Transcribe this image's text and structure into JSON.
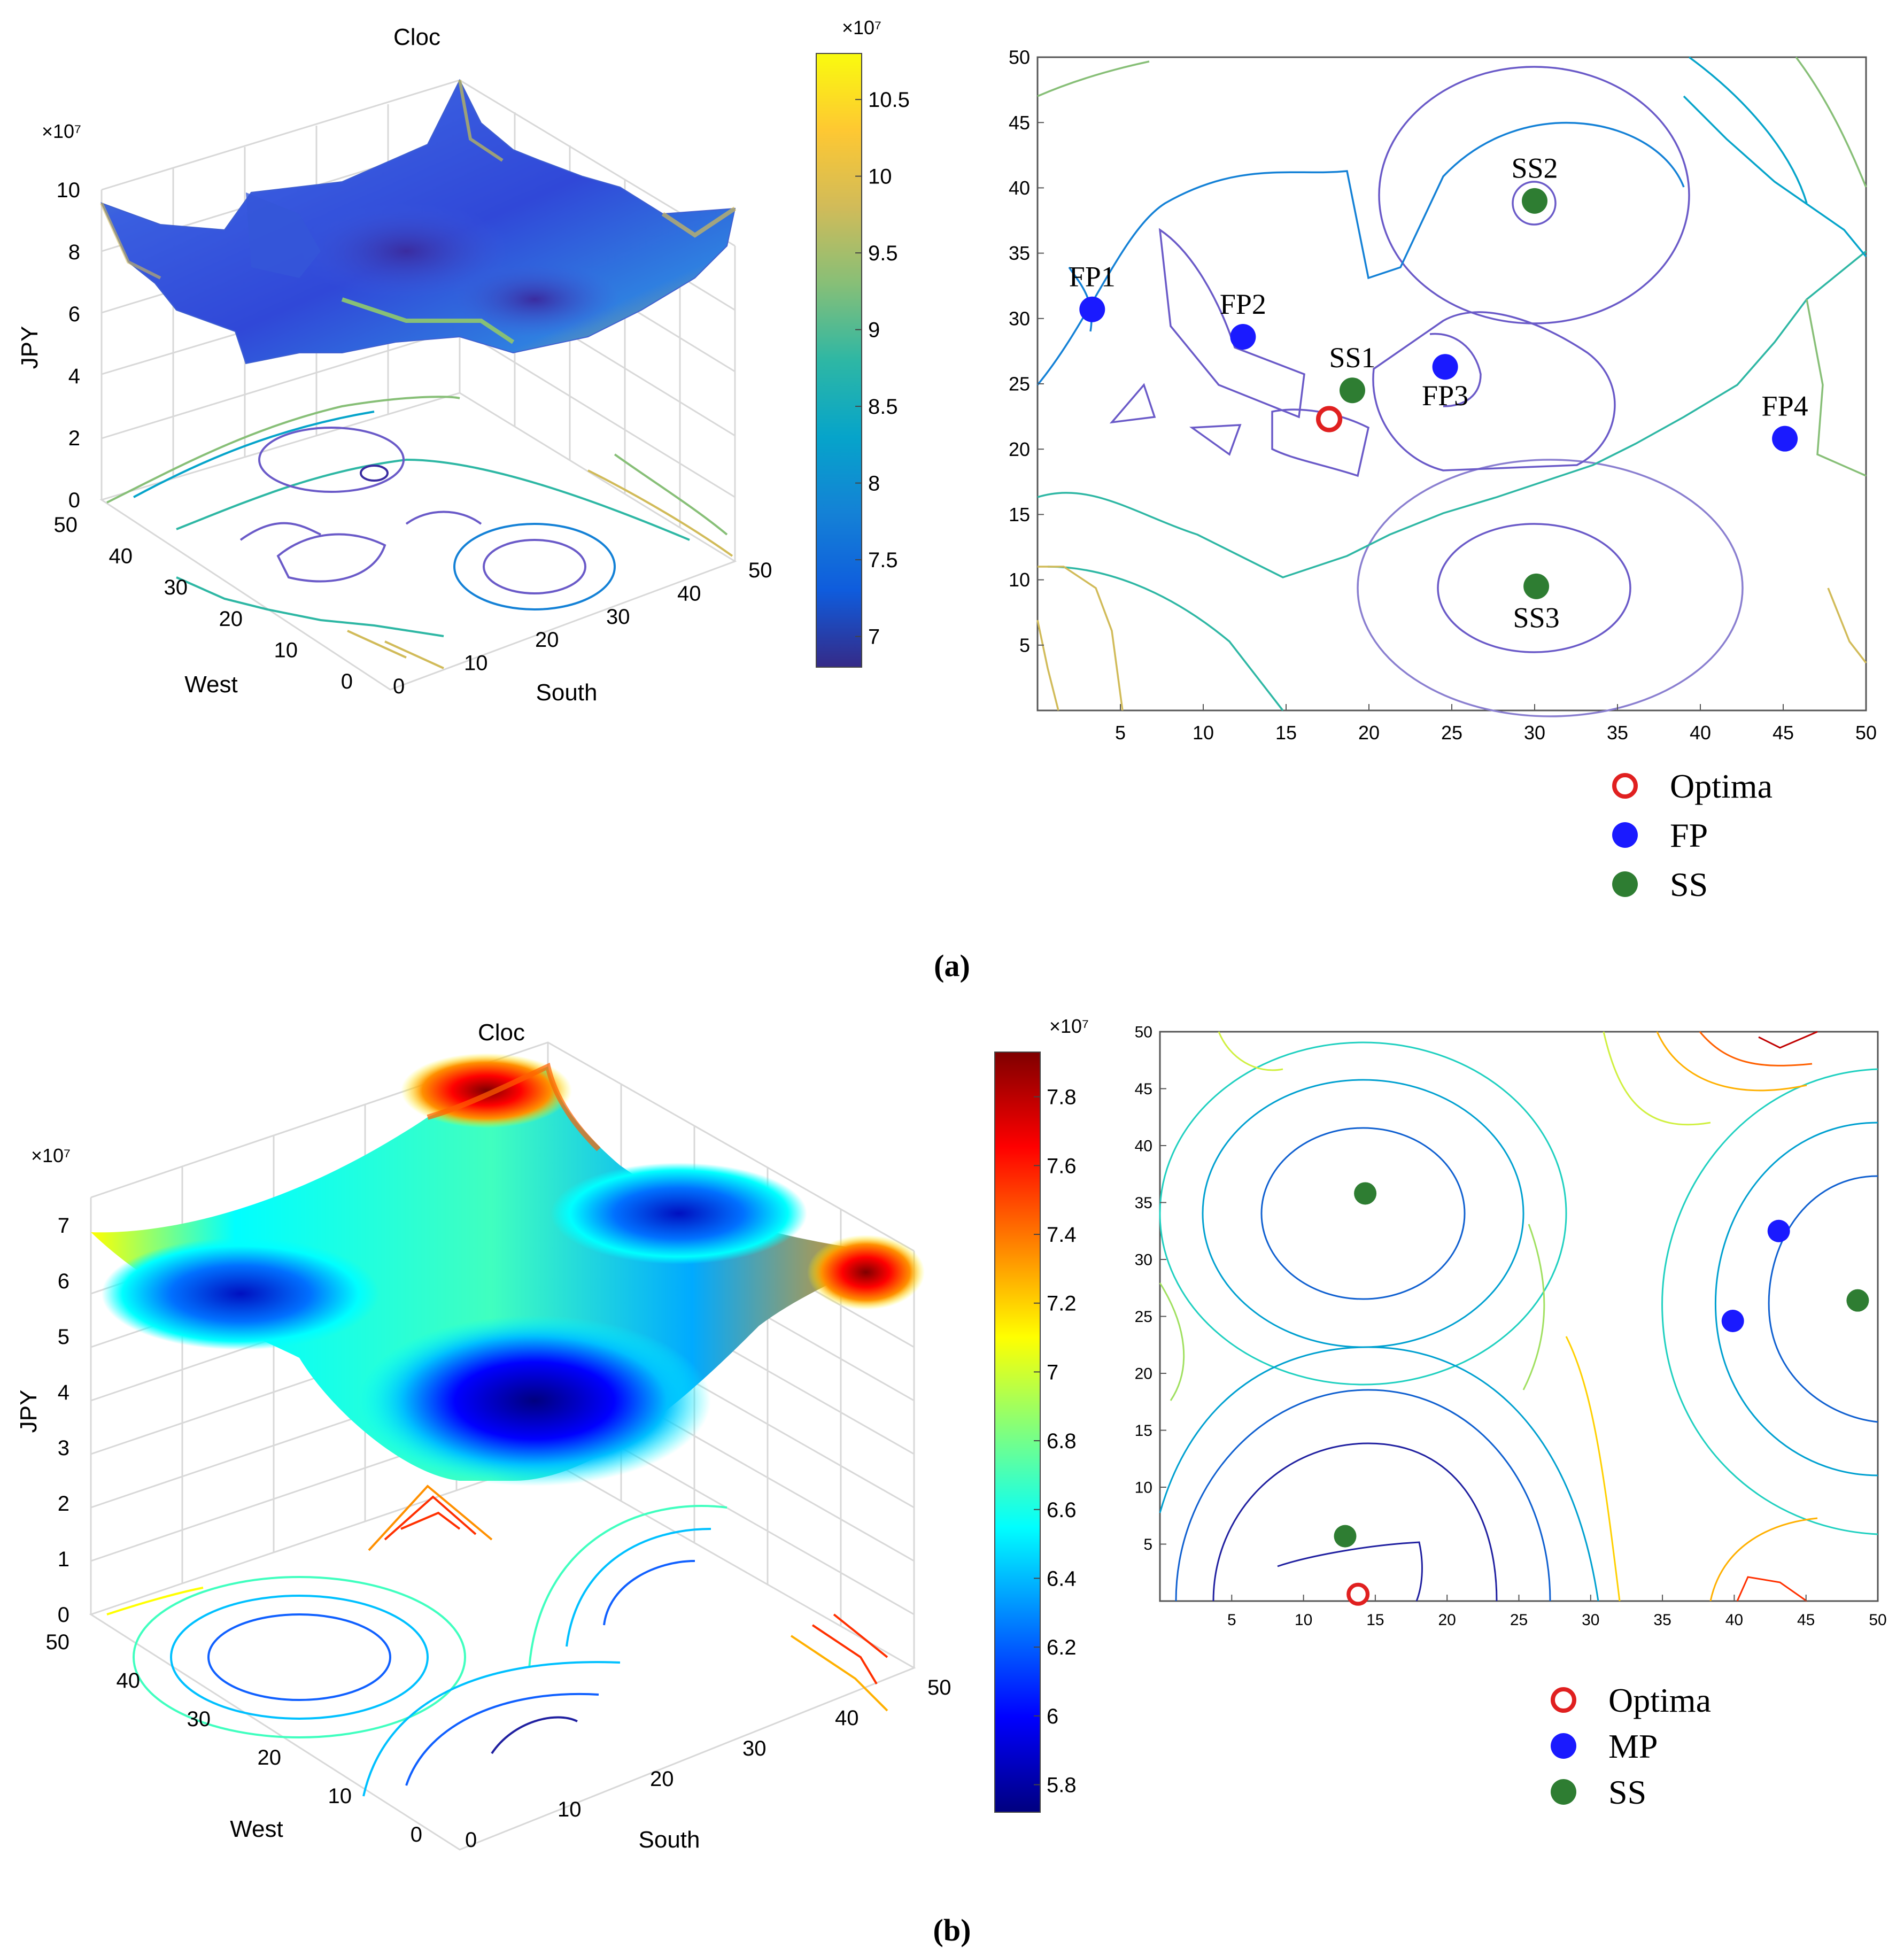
{
  "figure": {
    "panel_a_label": "(a)",
    "panel_b_label": "(b)"
  },
  "colors": {
    "optima": "#e02020",
    "facility_point": "#1a1aff",
    "supply_station": "#2e7d32",
    "parula_scale": [
      "#352a87",
      "#0f5cdd",
      "#1481d6",
      "#06a4ca",
      "#2eb7a4",
      "#87bf77",
      "#d1bb59",
      "#fec832",
      "#f9fb0e"
    ],
    "jet_scale": [
      "#00007f",
      "#0000ff",
      "#007fff",
      "#00ffff",
      "#7fff7f",
      "#ffff00",
      "#ff7f00",
      "#ff0000",
      "#7f0000"
    ]
  },
  "chart_data": [
    {
      "id": "a-surface",
      "type": "surface3d",
      "title": "Cloc",
      "zlabel": "JPY",
      "xlabel": "West",
      "ylabel": "South",
      "z_exponent": "×10⁷",
      "z_ticks": [
        "0",
        "2",
        "4",
        "6",
        "8",
        "10"
      ],
      "x_ticks": [
        "0",
        "10",
        "20",
        "30",
        "40",
        "50"
      ],
      "y_ticks": [
        "0",
        "10",
        "20",
        "30",
        "40",
        "50"
      ],
      "zlim": [
        0,
        10
      ],
      "colormap": "parula",
      "colorbar": {
        "exponent": "×10⁷",
        "ticks": [
          "10.5",
          "10",
          "9.5",
          "9",
          "8.5",
          "8",
          "7.5",
          "7"
        ],
        "range": [
          6.8,
          10.8
        ]
      }
    },
    {
      "id": "a-contour",
      "type": "scatter",
      "xlim": [
        0,
        50
      ],
      "ylim": [
        0,
        50
      ],
      "x_ticks": [
        "5",
        "10",
        "15",
        "20",
        "25",
        "30",
        "35",
        "40",
        "45",
        "50"
      ],
      "y_ticks": [
        "5",
        "10",
        "15",
        "20",
        "25",
        "30",
        "35",
        "40",
        "45",
        "50"
      ],
      "points": [
        {
          "label": "FP1",
          "group": "FP",
          "x": 3.3,
          "y": 30.7
        },
        {
          "label": "FP2",
          "group": "FP",
          "x": 12.4,
          "y": 28.6
        },
        {
          "label": "FP3",
          "group": "FP",
          "x": 24.6,
          "y": 26.3
        },
        {
          "label": "FP4",
          "group": "FP",
          "x": 45.1,
          "y": 20.8
        },
        {
          "label": "SS1",
          "group": "SS",
          "x": 19.0,
          "y": 24.5
        },
        {
          "label": "SS2",
          "group": "SS",
          "x": 30.0,
          "y": 39.0
        },
        {
          "label": "SS3",
          "group": "SS",
          "x": 30.1,
          "y": 9.5
        },
        {
          "label": "",
          "group": "Optima",
          "x": 17.6,
          "y": 22.3
        }
      ],
      "legend": [
        "Optima",
        "FP",
        "SS"
      ]
    },
    {
      "id": "b-surface",
      "type": "surface3d",
      "title": "Cloc",
      "zlabel": "JPY",
      "xlabel": "West",
      "ylabel": "South",
      "z_exponent": "×10⁷",
      "z_ticks": [
        "0",
        "1",
        "2",
        "3",
        "4",
        "5",
        "6",
        "7"
      ],
      "x_ticks": [
        "0",
        "10",
        "20",
        "30",
        "40",
        "50"
      ],
      "y_ticks": [
        "0",
        "10",
        "20",
        "30",
        "40",
        "50"
      ],
      "zlim": [
        0,
        7.5
      ],
      "colormap": "jet",
      "colorbar": {
        "exponent": "×10⁷",
        "ticks": [
          "7.8",
          "7.6",
          "7.4",
          "7.2",
          "7",
          "6.8",
          "6.6",
          "6.4",
          "6.2",
          "6",
          "5.8"
        ],
        "range": [
          5.72,
          7.93
        ]
      }
    },
    {
      "id": "b-contour",
      "type": "scatter",
      "xlim": [
        0,
        50
      ],
      "ylim": [
        0,
        50
      ],
      "x_ticks": [
        "5",
        "10",
        "15",
        "20",
        "25",
        "30",
        "35",
        "40",
        "45",
        "50"
      ],
      "y_ticks": [
        "5",
        "10",
        "15",
        "20",
        "25",
        "30",
        "35",
        "40",
        "45",
        "50"
      ],
      "points": [
        {
          "label": "",
          "group": "SS",
          "x": 14.3,
          "y": 35.8
        },
        {
          "label": "",
          "group": "SS",
          "x": 12.9,
          "y": 5.7
        },
        {
          "label": "",
          "group": "SS",
          "x": 48.6,
          "y": 26.4
        },
        {
          "label": "",
          "group": "MP",
          "x": 43.1,
          "y": 32.5
        },
        {
          "label": "",
          "group": "MP",
          "x": 39.9,
          "y": 24.6
        },
        {
          "label": "",
          "group": "Optima",
          "x": 13.8,
          "y": 0.6
        }
      ],
      "legend": [
        "Optima",
        "MP",
        "SS"
      ]
    }
  ]
}
